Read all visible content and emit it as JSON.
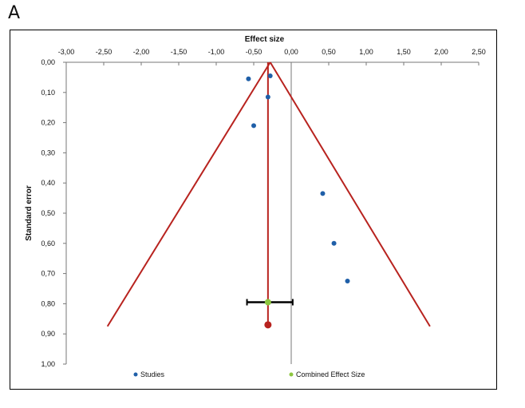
{
  "panel_label": "A",
  "chart_data": {
    "type": "scatter",
    "title": "",
    "xlabel": "Effect size",
    "ylabel": "Standard error",
    "xlim": [
      -3.0,
      2.5
    ],
    "ylim": [
      0.0,
      1.0
    ],
    "y_inverted": true,
    "x_axis_position": "top",
    "x_ticks": [
      "-3,00",
      "-2,50",
      "-2,00",
      "-1,50",
      "-1,00",
      "-0,50",
      "0,00",
      "0,50",
      "1,00",
      "1,50",
      "2,00",
      "2,50"
    ],
    "y_ticks": [
      "0,00",
      "0,10",
      "0,20",
      "0,30",
      "0,40",
      "0,50",
      "0,60",
      "0,70",
      "0,80",
      "0,90",
      "1,00"
    ],
    "grid": false,
    "legend_position": "bottom",
    "series": [
      {
        "name": "Studies",
        "color": "#1f5fa8",
        "points": [
          {
            "x": -0.57,
            "y": 0.055
          },
          {
            "x": -0.28,
            "y": 0.045
          },
          {
            "x": -0.31,
            "y": 0.115
          },
          {
            "x": -0.5,
            "y": 0.21
          },
          {
            "x": 0.42,
            "y": 0.435
          },
          {
            "x": 0.57,
            "y": 0.6
          },
          {
            "x": 0.75,
            "y": 0.725
          }
        ]
      },
      {
        "name": "Combined Effect Size",
        "color": "#8dc63f",
        "points": [
          {
            "x": -0.31,
            "y": 0.795
          }
        ],
        "ci": [
          -0.59,
          0.02
        ]
      }
    ],
    "funnel": {
      "color": "#b8231f",
      "apex": {
        "x": -0.28,
        "y": 0.0
      },
      "left_end": {
        "x": -2.45,
        "y": 0.875
      },
      "right_end": {
        "x": 1.85,
        "y": 0.875
      },
      "center_line_x": -0.31,
      "center_line_end_y": 0.87
    },
    "zero_line_x": 0.0
  }
}
